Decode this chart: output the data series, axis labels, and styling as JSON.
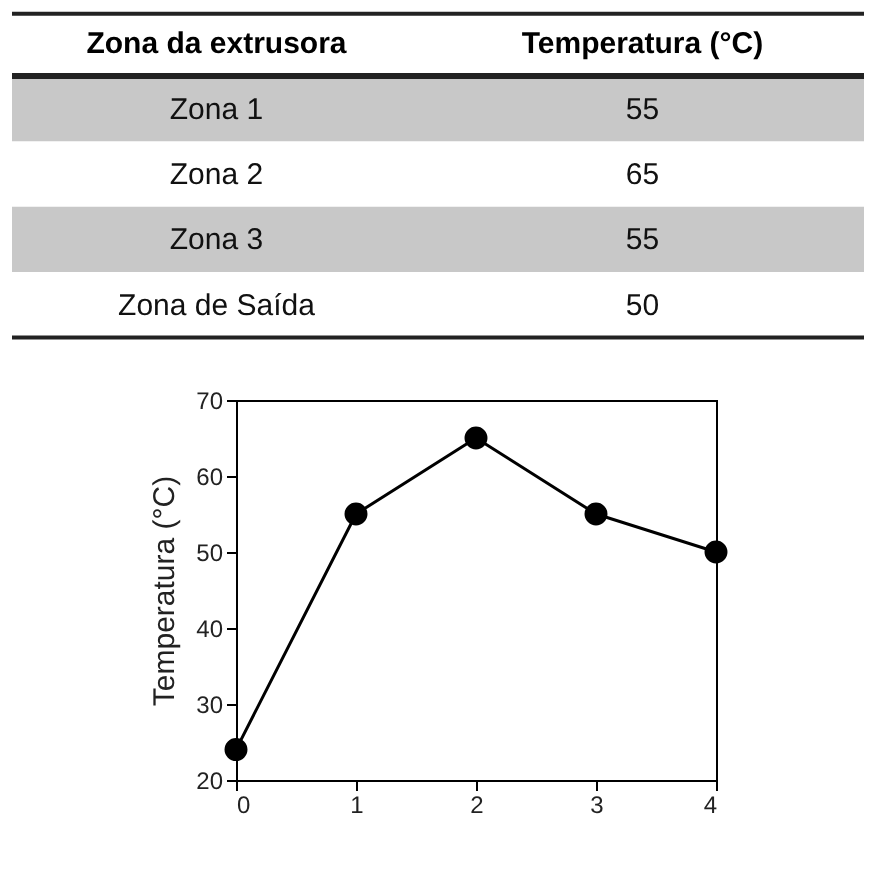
{
  "chart_data": [
    {
      "type": "other",
      "xlabel": "Zona da extrusora",
      "ylabel": "Temperatura (°C)",
      "categories": [
        "Zona 1",
        "Zona 2",
        "Zona 3",
        "Zona de Saída"
      ],
      "values": [
        55,
        65,
        55,
        50
      ],
      "data_labels": true
    },
    {
      "type": "line",
      "x": [
        0,
        1,
        2,
        3,
        4
      ],
      "values": [
        24,
        55,
        65,
        55,
        50
      ],
      "color": "#000000",
      "marker": "circle",
      "ylabel": "Temperatura (°C)",
      "xlim": [
        0,
        4
      ],
      "xticks": [
        0,
        1,
        2,
        3,
        4
      ],
      "ylim": [
        20,
        70
      ],
      "yticks": [
        20,
        30,
        40,
        50,
        60,
        70
      ],
      "grid": false
    }
  ]
}
